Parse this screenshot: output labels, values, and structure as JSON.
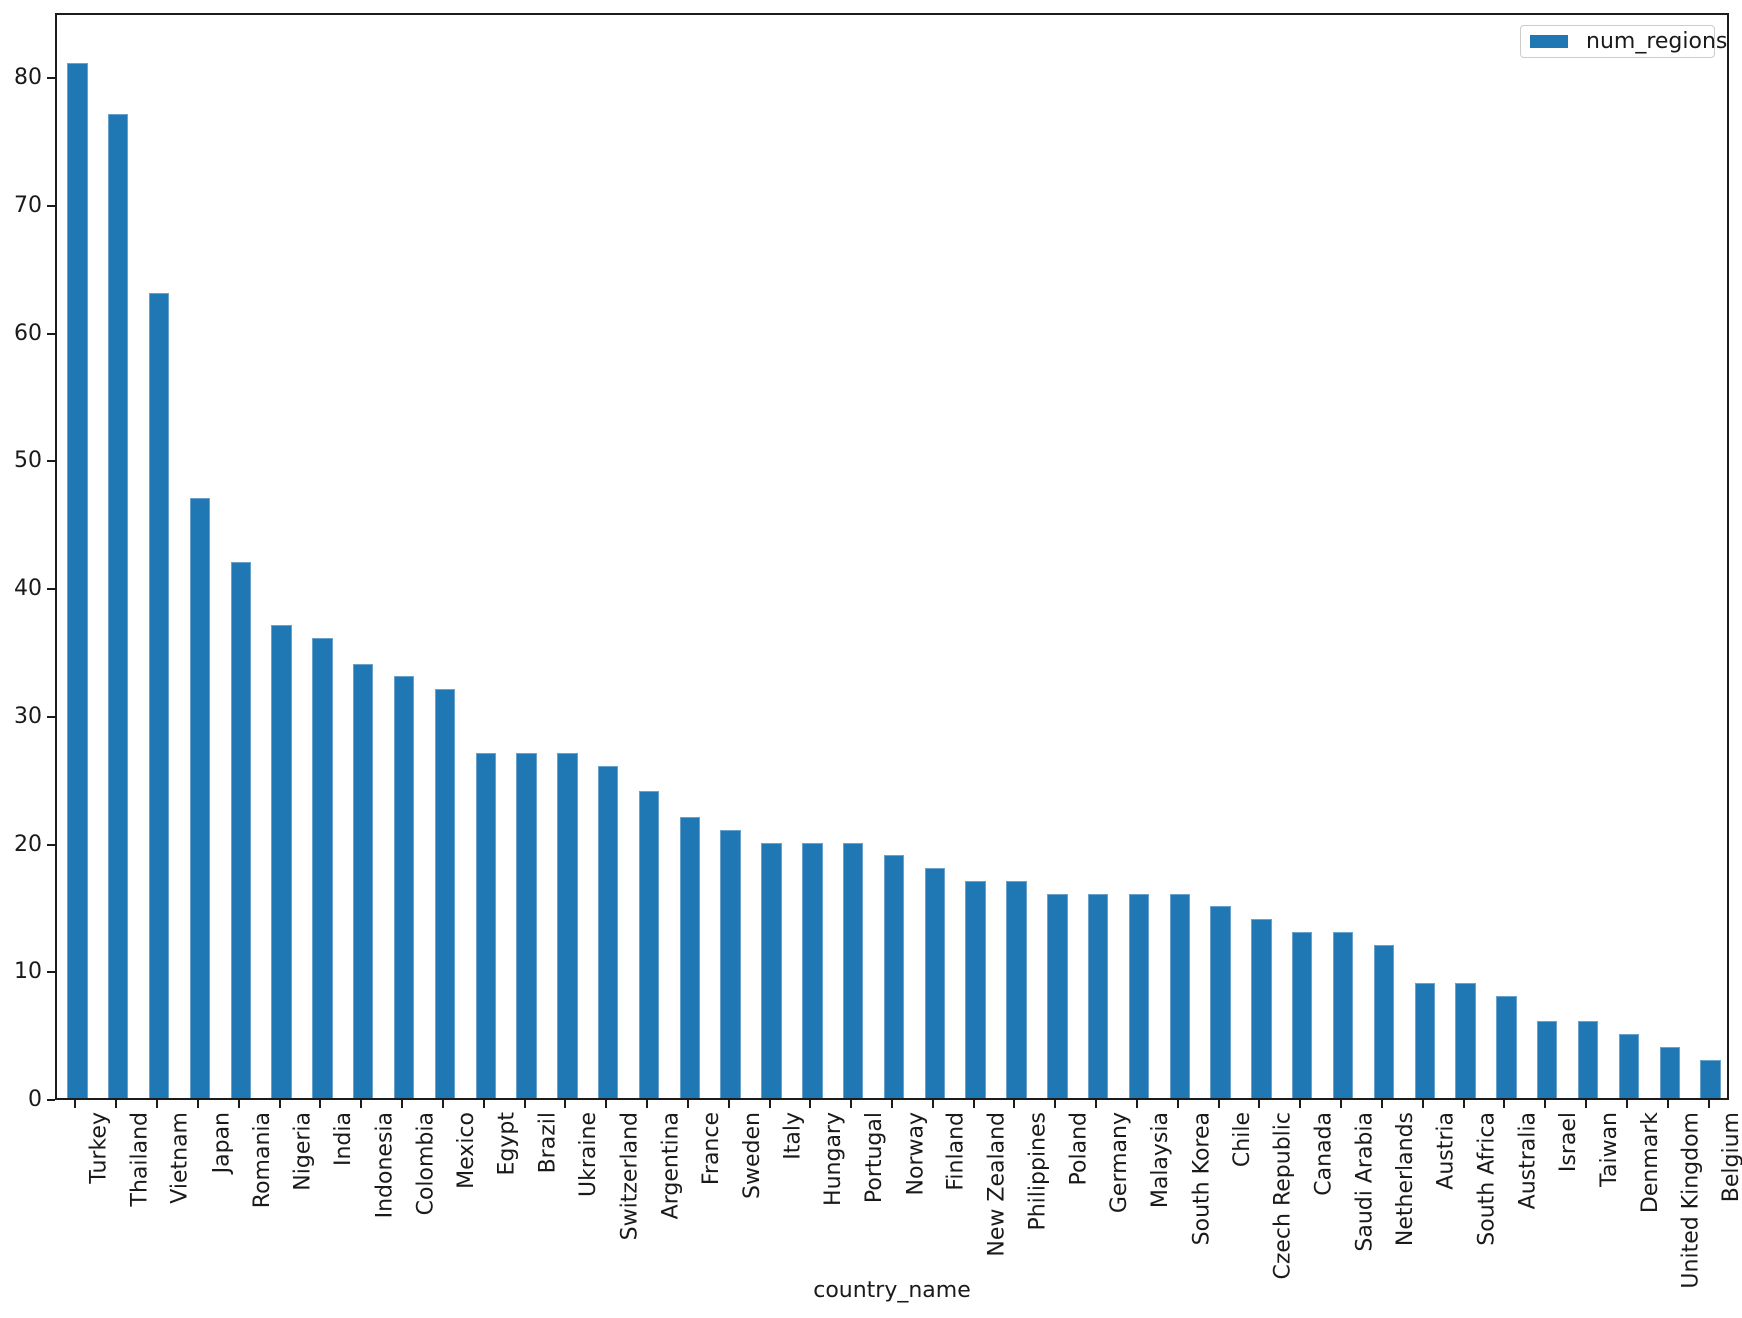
{
  "chart_data": {
    "type": "bar",
    "title": "",
    "xlabel": "country_name",
    "ylabel": "",
    "categories": [
      "Turkey",
      "Thailand",
      "Vietnam",
      "Japan",
      "Romania",
      "Nigeria",
      "India",
      "Indonesia",
      "Colombia",
      "Mexico",
      "Egypt",
      "Brazil",
      "Ukraine",
      "Switzerland",
      "Argentina",
      "France",
      "Sweden",
      "Italy",
      "Hungary",
      "Portugal",
      "Norway",
      "Finland",
      "New Zealand",
      "Philippines",
      "Poland",
      "Germany",
      "Malaysia",
      "South Korea",
      "Chile",
      "Czech Republic",
      "Canada",
      "Saudi Arabia",
      "Netherlands",
      "Austria",
      "South Africa",
      "Australia",
      "Israel",
      "Taiwan",
      "Denmark",
      "United Kingdom",
      "Belgium"
    ],
    "series": [
      {
        "name": "num_regions",
        "values": [
          81,
          77,
          63,
          47,
          42,
          37,
          36,
          34,
          33,
          32,
          27,
          27,
          27,
          26,
          24,
          22,
          21,
          20,
          20,
          20,
          19,
          18,
          17,
          17,
          16,
          16,
          16,
          16,
          15,
          14,
          13,
          13,
          12,
          9,
          9,
          8,
          6,
          6,
          5,
          4,
          3
        ]
      }
    ],
    "yticks": [
      0,
      10,
      20,
      30,
      40,
      50,
      60,
      70,
      80
    ],
    "ylim": [
      0,
      85.1
    ],
    "grid": false,
    "legend_position": "top-right",
    "bar_color": "#1f77b4",
    "bar_edge_color": "#6aa2cc",
    "x_label_rotation_degrees": 90
  }
}
